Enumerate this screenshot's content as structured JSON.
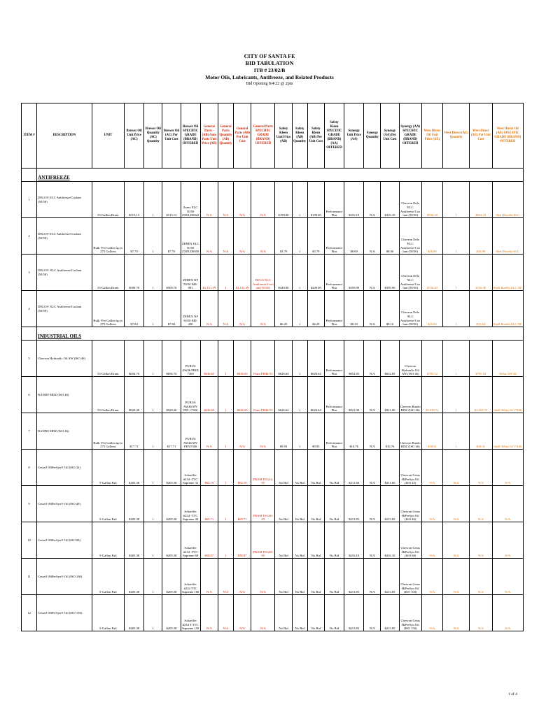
{
  "title": {
    "line1": "CITY OF SANTA FE",
    "line2": "BID TABULATION",
    "line3": "ITB # 23/02/B",
    "line4": "Motor Oils, Lubricants, Antifreeze, and Related Products",
    "line5": "Bid Opening 8/4/22 @ 2pm"
  },
  "headers": {
    "item": "ITEM #",
    "description": "DESCRIPTION",
    "unit": "UNIT",
    "brewer_price": "Brewer Oil Unit Price (AC)",
    "brewer_qty": "Brewer Oil Quantity (AC) Quantity",
    "brewer_cost": "Brewer Oil (AC) Per Unit Cost",
    "brewer_brand": "Brewer Oil SPECIFIC GRADE (BRAND) OFFERED",
    "gp_price": "General Parts - (AB) Auto Parts Unit Price (AB)",
    "gp_qty": "General Parts Quantity (AB) Quantity",
    "gp_cost": "General Parts (AB) Per Unit Cost",
    "gp_brand": "General Parts SPECIFIC GRADE (BRAND) OFFERED",
    "sk_price": "Safety Kleen Unit Price (AB)",
    "sk_qty": "Safety Kleen (AB) Quantity",
    "sk_cost": "Safety Kleen (AB) Per Unit Cost",
    "sk_brand": "Safety Kleen SPECIFIC GRADE (BRAND) (AA) OFFERED",
    "syn_price": "Synergy Unit Price (AA)",
    "syn_qty": "Synergy Quantity",
    "syn_cost": "Synergy (AA) Per Unit Cost",
    "syn_brand": "Synergy (AA) SPECIFIC GRADE (BRAND) OFFERED",
    "wd_price": "West Direct Oil Unit Price (AE)",
    "wd_qty": "West Direct (AE) Quantity",
    "wd_cost": "West Direct (AE) Per Unit Cost",
    "wd_brand": "West Direct Oil (AE) SPECIFIC GRADE (BRAND) OFFERED"
  },
  "sections": {
    "antifreeze": "ANTIFREEZE",
    "industrial": "INDUSTRIAL OILS"
  },
  "rows": [
    {
      "item": "1",
      "desc": "DELO® ELC Antifreeze/Coolant (50/50)",
      "unit": "55-Gallon Drum",
      "b_price": "$515.13",
      "b_qty": "1",
      "b_cost": "$515.13",
      "b_brand": "Zerex ELC 50/50 ZXELD0022",
      "gp_price": "N/A",
      "gp_qty": "N/A",
      "gp_cost": "N/A",
      "gp_brand": "N/A",
      "sk_price": "$199.00",
      "sk_qty": "1",
      "sk_cost": "$199.00",
      "sk_brand": "Performance Plus",
      "sy_price": "$310.10",
      "sy_qty": "N/A",
      "sy_cost": "$310.10",
      "sy_brand": "Chevron Delo ELC Antifreeze/Coolant (50/50)",
      "wd_price": "$934.18",
      "wd_qty": "1",
      "wd_cost": "$934.18",
      "wd_brand": "Shell Rotella ELC"
    },
    {
      "item": "2",
      "desc": "DELO® ELC Antifreeze/Coolant (50/50)",
      "unit": "Bulk -Per Gallon up to 275 Gallons",
      "b_price": "$7.70",
      "b_qty": "1",
      "b_cost": "$7.70",
      "b_brand": "ZEREX ELC 50/50 ZXELD0050",
      "gp_price": "N/A",
      "gp_qty": "N/A",
      "gp_cost": "N/A",
      "gp_brand": "N/A",
      "sk_price": "$3.79",
      "sk_qty": "1",
      "sk_cost": "$3.79",
      "sk_brand": "Performance Plus",
      "sy_price": "$8.00",
      "sy_qty": "N/A",
      "sy_cost": "$8.00",
      "sy_brand": "Chevron Delo ELC Antifreeze/Coolant (50/50)",
      "wd_price": "$16.99",
      "wd_qty": "1",
      "wd_cost": "$16.99",
      "wd_brand": "Shell Rotella ELC"
    },
    {
      "item": "3",
      "desc": "DELO® XLC Antifreeze/Coolant (50/50)",
      "unit": "55-Gallon Drum",
      "b_price": "$509.78",
      "b_qty": "1",
      "b_cost": "$509.78",
      "b_brand": "ZEREX NF 50/50 848-081",
      "gp_price": "$1,151.39",
      "gp_qty": "1",
      "gp_cost": "$1,151.39",
      "gp_brand": "DELO XLC Antifreeze/Coolant (50/50)",
      "sk_price": "$449.00",
      "sk_qty": "1",
      "sk_cost": "$449.00",
      "sk_brand": "Performance Plus",
      "sy_price": "$359.90",
      "sy_qty": "N/A",
      "sy_cost": "$359.90",
      "sy_brand": "Chevron Delo XLC Antifreeze/Coolant (50/50)",
      "wd_price": "$736.40",
      "wd_qty": "1",
      "wd_cost": "$736.40",
      "wd_brand": "Shell Rotella ELC NF"
    },
    {
      "item": "4",
      "desc": "DELO® XLC Antifreeze/Coolant (50/50)",
      "unit": "Bulk -Per Gallon up to 275 Gallons",
      "b_price": "$7.84",
      "b_qty": "1",
      "b_cost": "$7.84",
      "b_brand": "ZEREX NF 50/50 848-200",
      "gp_price": "N/A",
      "gp_qty": "N/A",
      "gp_cost": "N/A",
      "gp_brand": "N/A",
      "sk_price": "$6.29",
      "sk_qty": "1",
      "sk_cost": "$6.29",
      "sk_brand": "Performance Plus",
      "sy_price": "$8.10",
      "sy_qty": "N/A",
      "sy_cost": "$8.10",
      "sy_brand": "Chevron Delo XLC Antifreeze/Coolant (50/50)",
      "wd_price": "$15.64",
      "wd_qty": "1",
      "wd_cost": "$15.64",
      "wd_brand": "Shell Rotella ELC NF"
    },
    {
      "item": "5",
      "desc": "Chevron Hydraulic Oil AW (ISO 46)",
      "unit": "55-Gallon Drum",
      "b_price": "$656.70",
      "b_qty": "1",
      "b_cost": "$656.70",
      "b_brand": "PURUS AW46 PHIX 7369",
      "gp_price": "$636.65",
      "gp_qty": "1",
      "gp_cost": "$636.65",
      "gp_brand": "Fram PH46-55",
      "sk_price": "$626.64",
      "sk_qty": "1",
      "sk_cost": "$626.64",
      "sk_brand": "Performance Plus",
      "sy_price": "$652.85",
      "sy_qty": "N/A",
      "sy_cost": "$652.85",
      "sy_brand": "Chevron Hydraulic Oil AW (ISO 46)",
      "wd_price": "$795.52",
      "wd_qty": "1",
      "wd_cost": "$795.52",
      "wd_brand": "Tellus AW 46"
    },
    {
      "item": "6",
      "desc": "RANDO HDZ (ISO 46)",
      "unit": "55-Gallon Drum",
      "b_price": "$920.40",
      "b_qty": "1",
      "b_cost": "$920.40",
      "b_brand": "PURUS AW46 MV PIN 17300",
      "gp_price": "$636.65",
      "gp_qty": "1",
      "gp_cost": "$636.65",
      "gp_brand": "Fram PH46-55",
      "sk_price": "$626.64",
      "sk_qty": "1",
      "sk_cost": "$626.64",
      "sk_brand": "Performance Plus",
      "sy_price": "$921.00",
      "sy_qty": "N/A",
      "sy_cost": "$921.00",
      "sy_brand": "Chevron Rando HDZ (ISO 46)",
      "wd_price": "$1,010.72",
      "wd_qty": "1",
      "wd_cost": "$1,010.72",
      "wd_brand": "Shell Tellus S2 VX46"
    },
    {
      "item": "7",
      "desc": "RANDO HDZ (ISO 46)",
      "unit": "Bulk -Per Gallon up to 275 Gallons",
      "b_price": "$17.71",
      "b_qty": "1",
      "b_cost": "$17.71",
      "b_brand": "PURUS AW46 MV PENT300",
      "gp_price": "N/A",
      "gp_qty": "1",
      "gp_cost": "N/A",
      "gp_brand": "N/A",
      "sk_price": "$9.93",
      "sk_qty": "1",
      "sk_cost": "$9.93",
      "sk_brand": "Performance Plus",
      "sy_price": "$16.76",
      "sy_qty": "N/A",
      "sy_cost": "$16.76",
      "sy_brand": "Chevron Rando HDZ (ISO 46)",
      "wd_price": "$18.31",
      "wd_qty": "1",
      "wd_cost": "$18.31",
      "wd_brand": "Shell Tellus S2 VX46"
    },
    {
      "item": "8",
      "desc": "Cetus® HiPerSyn® Oil (ISO 32)",
      "unit": "5-Gallon Pail",
      "b_price": "$203.38",
      "b_qty": "1",
      "b_cost": "$203.38",
      "b_brand": "Schaeffer #234 -TTC Supreme 32",
      "gp_price": "$64.19",
      "gp_qty": "1",
      "gp_cost": "$64.19",
      "gp_brand": "FRAM FSG32-05",
      "sk_price": "No Bid",
      "sk_qty": "No Bid",
      "sk_cost": "No Bid",
      "sk_brand": "No Bid",
      "sy_price": "$211.60",
      "sy_qty": "N/A",
      "sy_cost": "$211.60",
      "sy_brand": "Chevron Cetus HiPerSyn Oil (ISO 32)",
      "wd_price": "N/A",
      "wd_qty": "N/A",
      "wd_cost": "N/A",
      "wd_brand": "N/A"
    },
    {
      "item": "9",
      "desc": "Cetus® HiPerSyn® Oil (ISO 46)",
      "unit": "5-Gallon Pail",
      "b_price": "$205.38",
      "b_qty": "1",
      "b_cost": "$205.38",
      "b_brand": "Schaeffer #234 -TTC Supreme 46",
      "gp_price": "$69.71",
      "gp_qty": "1",
      "gp_cost": "$69.71",
      "gp_brand": "FRAM FSG46-05",
      "sk_price": "No Bid",
      "sk_qty": "No Bid",
      "sk_cost": "No Bid",
      "sk_brand": "No Bid",
      "sy_price": "$213.85",
      "sy_qty": "N/A",
      "sy_cost": "$213.85",
      "sy_brand": "Chevron Cetus HiPerSyn Oil (ISO 46)",
      "wd_price": "N/A",
      "wd_qty": "N/A",
      "wd_cost": "N/A",
      "wd_brand": "N/A"
    },
    {
      "item": "10",
      "desc": "Cetus® HiPerSyn® Oil (ISO 68)",
      "unit": "5-Gallon Pail",
      "b_price": "$205.38",
      "b_qty": "1",
      "b_cost": "$205.38",
      "b_brand": "Schaeffer #234 -TTC Supreme 68",
      "gp_price": "$58.07",
      "gp_qty": "1",
      "gp_cost": "$58.07",
      "gp_brand": "FRAM FSG68-05",
      "sk_price": "No Bid",
      "sk_qty": "No Bid",
      "sk_cost": "No Bid",
      "sk_brand": "No Bid",
      "sy_price": "$216.10",
      "sy_qty": "N/A",
      "sy_cost": "$216.10",
      "sy_brand": "Chevron Cetus HiPerSyn Oil (ISO 68)",
      "wd_price": "N/A",
      "wd_qty": "N/A",
      "wd_cost": "N/A",
      "wd_brand": "N/A"
    },
    {
      "item": "11",
      "desc": "Cetus® HiPerSyn® Oil (ISO 100)",
      "unit": "5-Gallon Pail",
      "b_price": "$205.38",
      "b_qty": "1",
      "b_cost": "$205.38",
      "b_brand": "Schaeffer #234 TTC Supreme 100",
      "gp_price": "N/A",
      "gp_qty": "N/A",
      "gp_cost": "N/A",
      "gp_brand": "N/A",
      "sk_price": "No Bid",
      "sk_qty": "No Bid",
      "sk_cost": "No Bid",
      "sk_brand": "No Bid",
      "sy_price": "$213.85",
      "sy_qty": "N/A",
      "sy_cost": "$213.85",
      "sy_brand": "Chevron Cetus HiPerSyn Oil (ISO 100)",
      "wd_price": "N/A",
      "wd_qty": "N/A",
      "wd_cost": "N/A",
      "wd_brand": "N/A"
    },
    {
      "item": "12",
      "desc": "Cetus® HiPerSyn® Oil (ISO 150)",
      "unit": "5-Gallon Pail",
      "b_price": "$205.38",
      "b_qty": "1",
      "b_cost": "$205.38",
      "b_brand": "Schaeffer #234 T-TTC Supreme 150",
      "gp_price": "N/A",
      "gp_qty": "N/A",
      "gp_cost": "N/A",
      "gp_brand": "N/A",
      "sk_price": "No Bid",
      "sk_qty": "No Bid",
      "sk_cost": "No Bid",
      "sk_brand": "No Bid",
      "sy_price": "$213.85",
      "sy_qty": "N/A",
      "sy_cost": "$213.85",
      "sy_brand": "Chevron Cetus HiPerSyn Oil (ISO 150)",
      "wd_price": "N/A",
      "wd_qty": "N/A",
      "wd_cost": "N/A",
      "wd_brand": "N/A"
    }
  ],
  "page_number": "1 of 4",
  "colors": {
    "accent_red": "#cc2200",
    "accent_orange": "#e07000"
  }
}
